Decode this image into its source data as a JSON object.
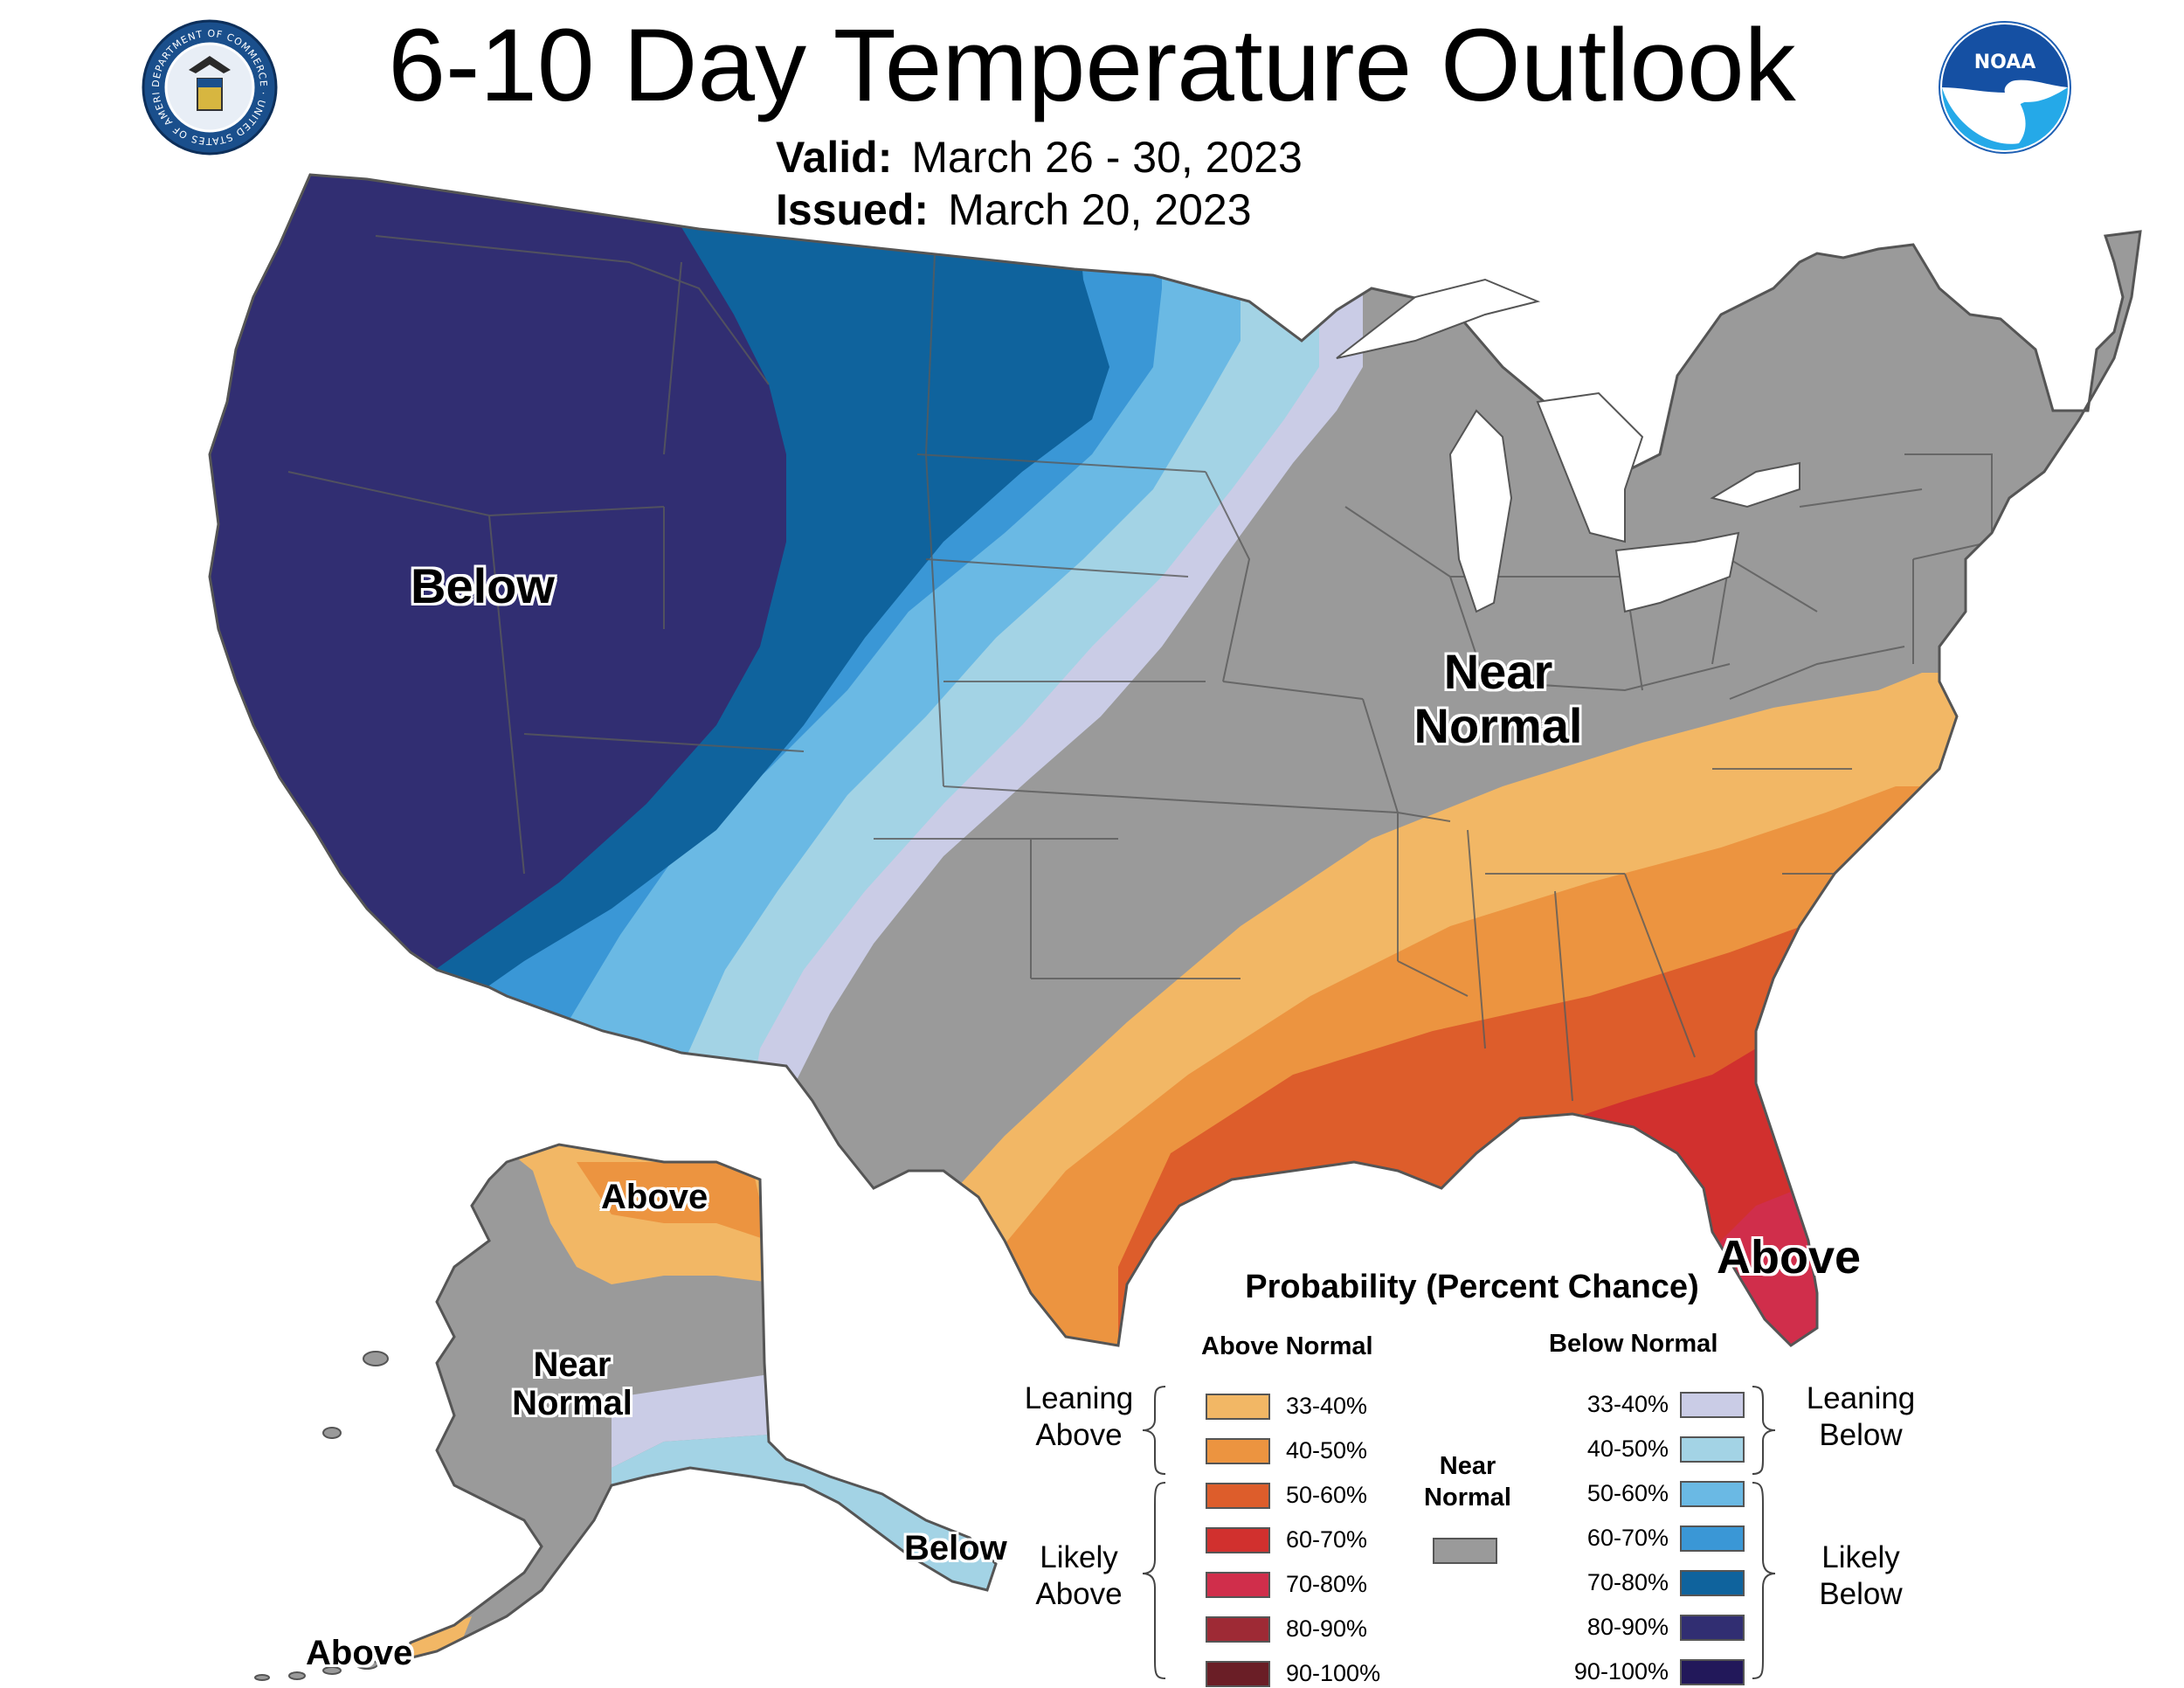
{
  "header": {
    "title": "6-10 Day Temperature Outlook",
    "valid_label": "Valid:",
    "valid_value": "March 26 - 30, 2023",
    "issued_label": "Issued:",
    "issued_value": "March 20, 2023"
  },
  "logos": {
    "left": "department-of-commerce-seal",
    "left_seal_text": "DEPARTMENT OF COMMERCE · UNITED STATES OF AMERICA",
    "right": "noaa-logo",
    "right_text": "NOAA"
  },
  "map_labels": {
    "west": "Below",
    "east_line1": "Near",
    "east_line2": "Normal",
    "southeast": "Above",
    "alaska_north": "Above",
    "alaska_center_line1": "Near",
    "alaska_center_line2": "Normal",
    "alaska_southeast": "Below",
    "alaska_southwest": "Above"
  },
  "colors": {
    "above_33_40": "#F2B765",
    "above_40_50": "#EC9440",
    "above_50_60": "#DD5D2B",
    "above_60_70": "#D1302E",
    "above_70_80": "#D02E4B",
    "above_80_90": "#9E2A35",
    "above_90_100": "#6A1E26",
    "near_normal": "#9A9A9A",
    "below_33_40": "#CACCE6",
    "below_40_50": "#A3D3E5",
    "below_50_60": "#6AB9E4",
    "below_60_70": "#3A97D6",
    "below_70_80": "#0F639D",
    "below_80_90": "#312E72",
    "below_90_100": "#22185A"
  },
  "legend": {
    "title": "Probability (Percent Chance)",
    "above_head": "Above Normal",
    "below_head": "Below Normal",
    "near_head_line1": "Near",
    "near_head_line2": "Normal",
    "above_levels": [
      "33-40%",
      "40-50%",
      "50-60%",
      "60-70%",
      "70-80%",
      "80-90%",
      "90-100%"
    ],
    "below_levels": [
      "33-40%",
      "40-50%",
      "50-60%",
      "60-70%",
      "70-80%",
      "80-90%",
      "90-100%"
    ],
    "leaning_above_line1": "Leaning",
    "leaning_above_line2": "Above",
    "likely_above_line1": "Likely",
    "likely_above_line2": "Above",
    "leaning_below_line1": "Leaning",
    "leaning_below_line2": "Below",
    "likely_below_line1": "Likely",
    "likely_below_line2": "Below"
  }
}
